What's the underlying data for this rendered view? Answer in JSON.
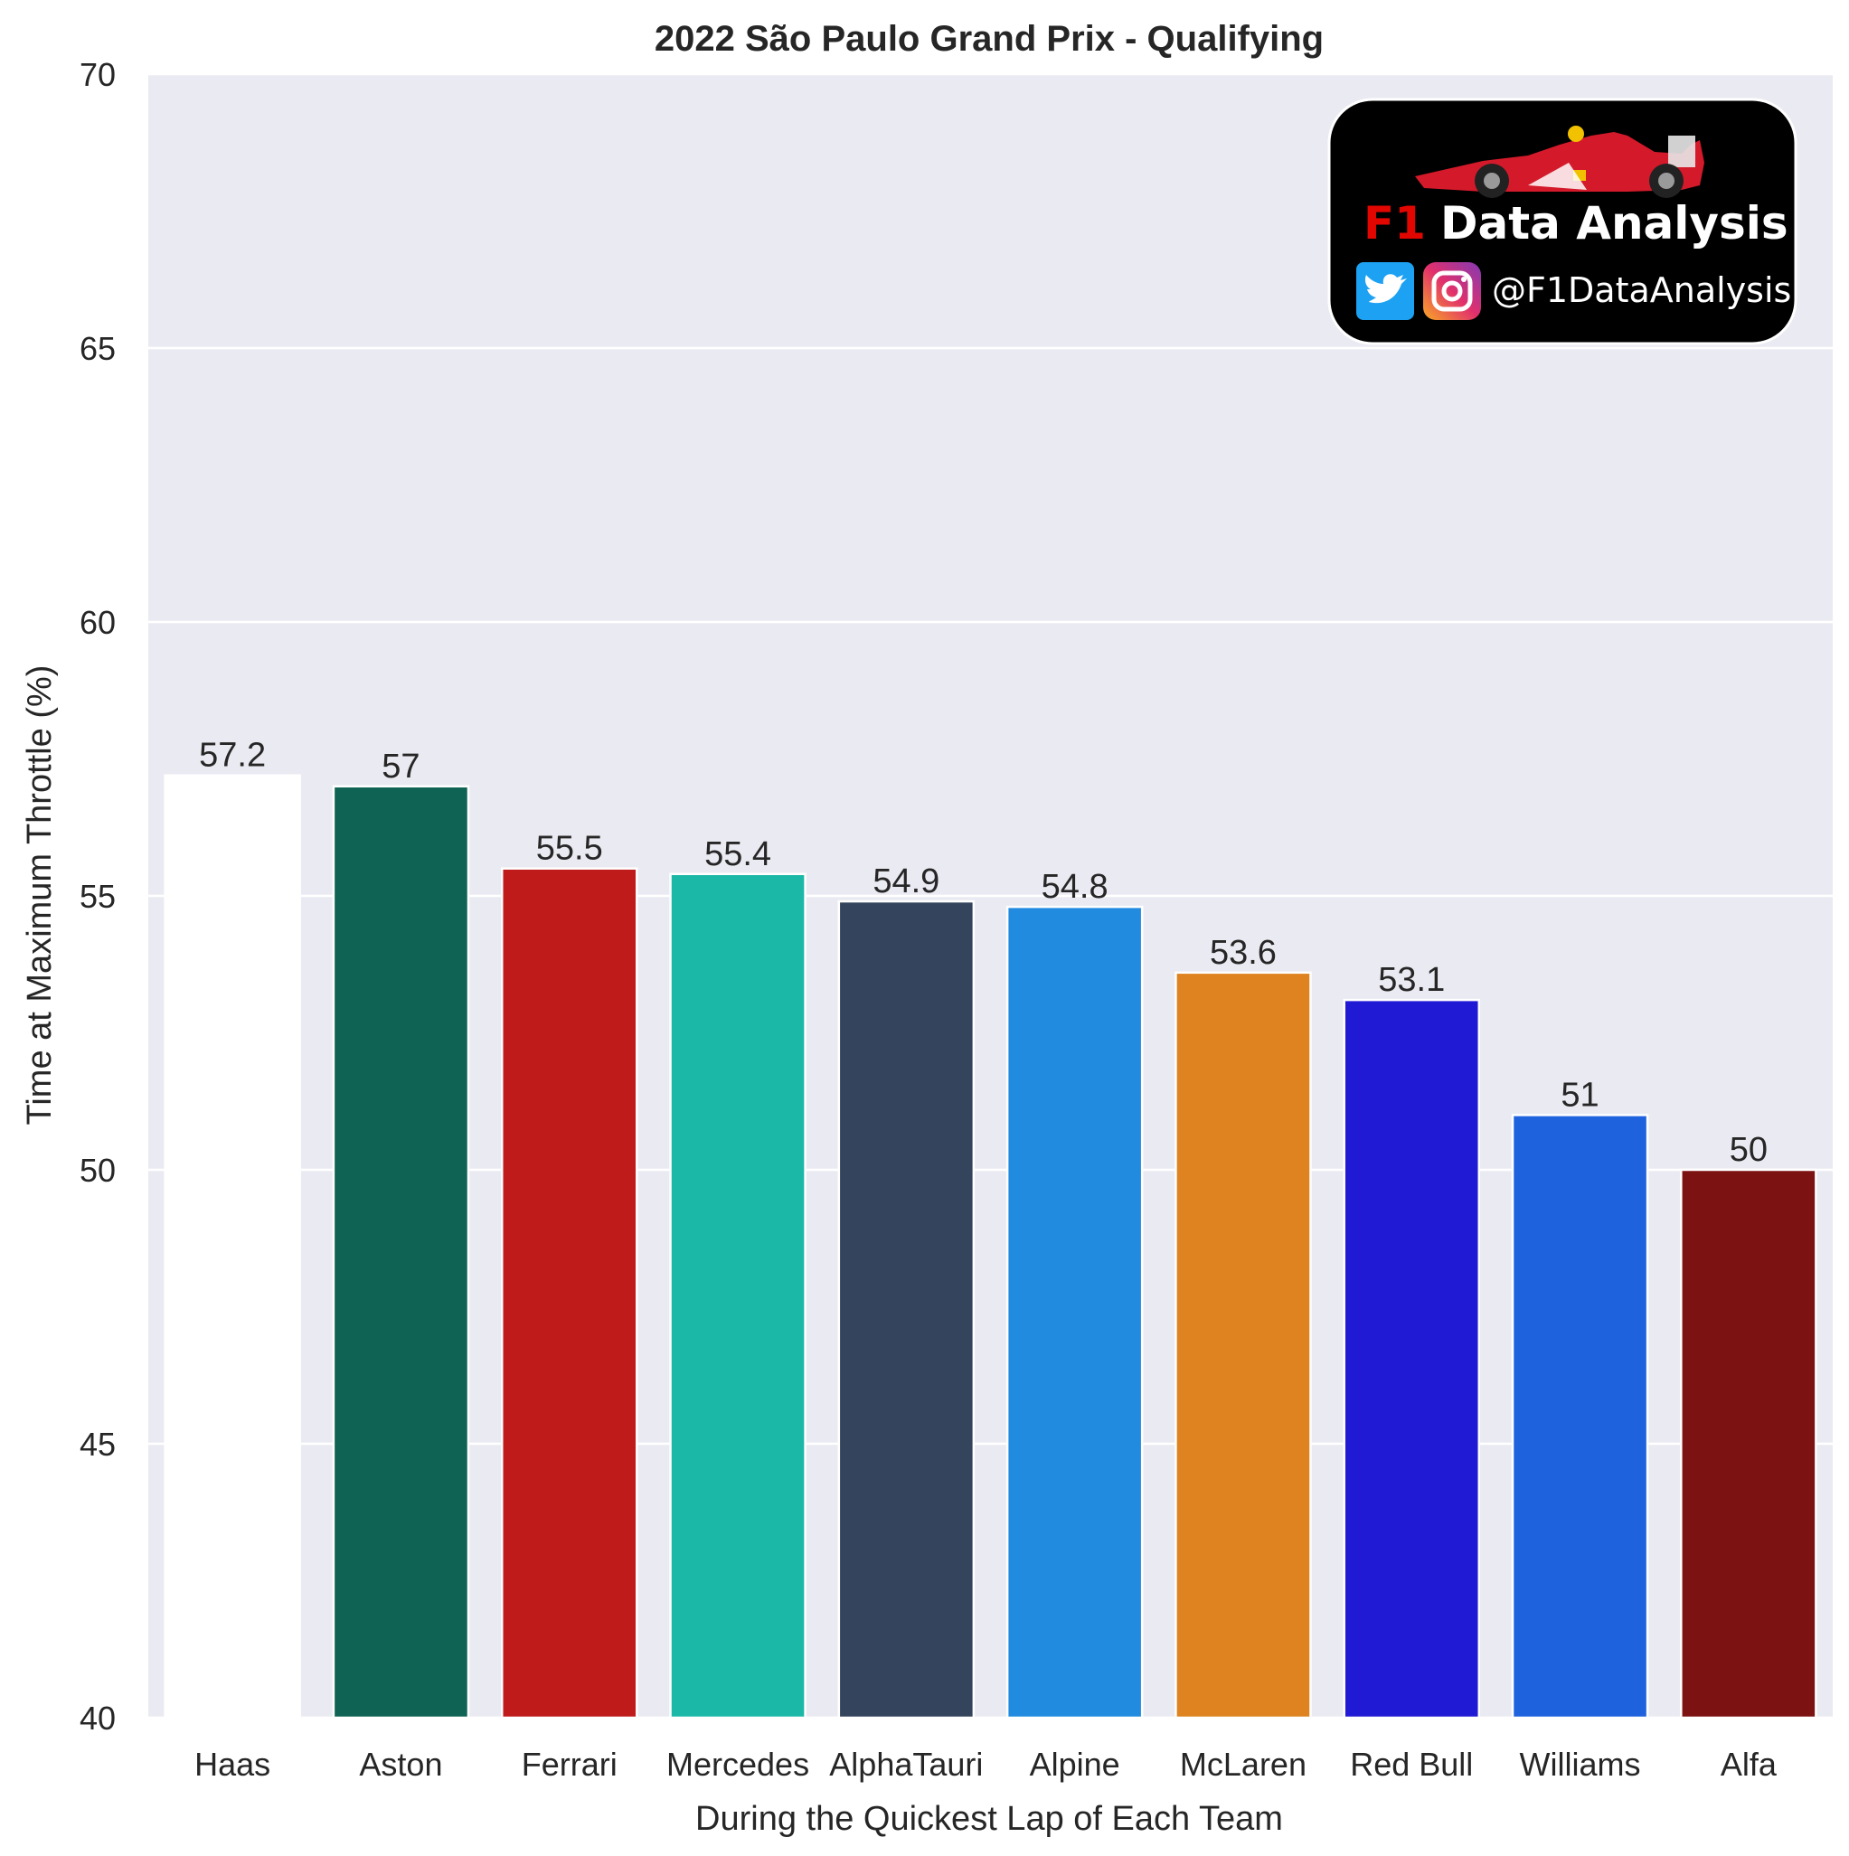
{
  "chart_data": {
    "type": "bar",
    "title": "2022 São Paulo Grand Prix - Qualifying",
    "xlabel": "During the Quickest Lap of Each Team",
    "ylabel": "Time at Maximum Throttle (%)",
    "ylim": [
      40,
      70
    ],
    "yticks": [
      40,
      45,
      50,
      55,
      60,
      65,
      70
    ],
    "grid": true,
    "categories": [
      "Haas",
      "Aston",
      "Ferrari",
      "Mercedes",
      "AlphaTauri",
      "Alpine",
      "McLaren",
      "Red Bull",
      "Williams",
      "Alfa"
    ],
    "values": [
      57.2,
      57,
      55.5,
      55.4,
      54.9,
      54.8,
      53.6,
      53.1,
      51,
      50
    ],
    "value_labels": [
      "57.2",
      "57",
      "55.5",
      "55.4",
      "54.9",
      "54.8",
      "53.6",
      "53.1",
      "51",
      "50"
    ],
    "colors": [
      "#ffffff",
      "#0f6354",
      "#c01b1b",
      "#1bb8a8",
      "#33445c",
      "#218be0",
      "#de831f",
      "#211ad4",
      "#1f62de",
      "#7d1212"
    ]
  },
  "style": {
    "plot_background": "#eaeaf2",
    "grid_color": "#ffffff",
    "bar_edge_color": "#ffffff",
    "text_color": "#262626"
  },
  "logo": {
    "f1_text": "F1",
    "name_text": "Data Analysis",
    "handle": "@F1DataAnalysis",
    "position": "top-right",
    "background": "#000000",
    "icons": [
      "race-car-icon",
      "twitter-icon",
      "instagram-icon"
    ]
  }
}
